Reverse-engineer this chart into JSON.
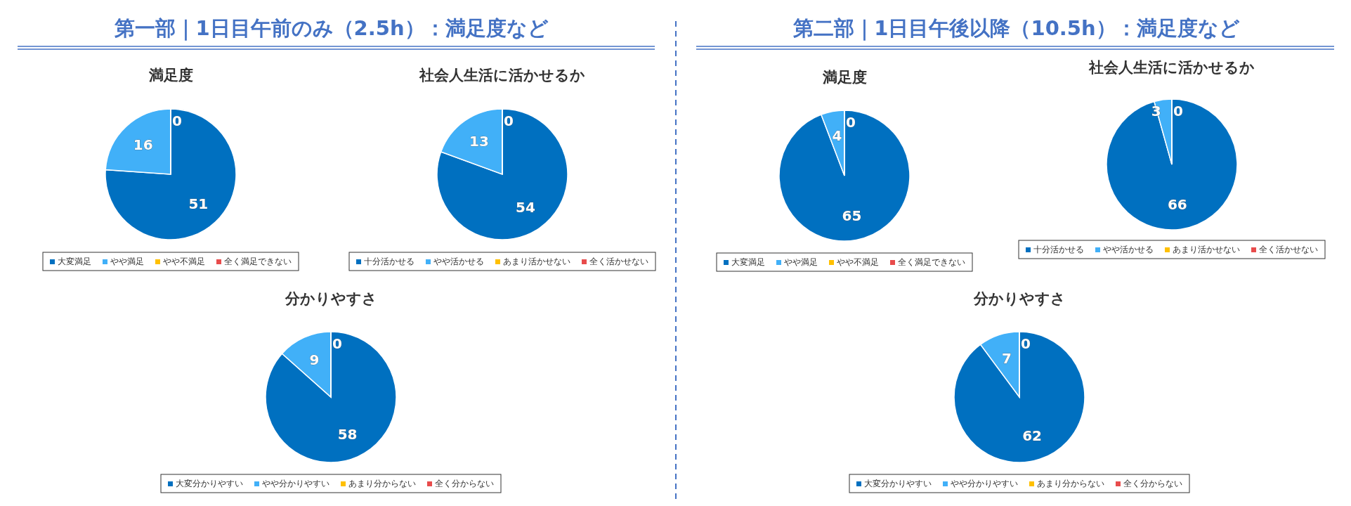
{
  "chart_data": [
    {
      "type": "pie",
      "title": "満足度",
      "annotations": [
        "第一部｜1日目午前のみ（2.5h）：満足度など"
      ],
      "categories": [
        "大変満足",
        "やや満足",
        "やや不満足",
        "全く満足できない"
      ],
      "values": [
        51,
        16,
        0,
        0
      ],
      "value_labels": [
        "51",
        "16",
        "0",
        null
      ],
      "colors": [
        "#0070c0",
        "#41b0f8",
        "#ffc000",
        "#e84c4c"
      ],
      "legend": "bottom"
    },
    {
      "type": "pie",
      "title": "社会人生活に活かせるか",
      "categories": [
        "十分活かせる",
        "やや活かせる",
        "あまり活かせない",
        "全く活かせない"
      ],
      "values": [
        54,
        13,
        0,
        0
      ],
      "value_labels": [
        "54",
        "13",
        "0",
        null
      ],
      "colors": [
        "#0070c0",
        "#41b0f8",
        "#ffc000",
        "#e84c4c"
      ],
      "legend": "bottom"
    },
    {
      "type": "pie",
      "title": "分かりやすさ",
      "categories": [
        "大変分かりやすい",
        "やや分かりやすい",
        "あまり分からない",
        "全く分からない"
      ],
      "values": [
        58,
        9,
        0,
        0
      ],
      "value_labels": [
        "58",
        "9",
        "0",
        null
      ],
      "colors": [
        "#0070c0",
        "#41b0f8",
        "#ffc000",
        "#e84c4c"
      ],
      "legend": "bottom"
    },
    {
      "type": "pie",
      "title": "満足度",
      "annotations": [
        "第二部｜1日目午後以降（10.5h）：満足度など"
      ],
      "categories": [
        "大変満足",
        "やや満足",
        "やや不満足",
        "全く満足できない"
      ],
      "values": [
        65,
        4,
        0,
        0
      ],
      "value_labels": [
        "65",
        "4",
        "0",
        null
      ],
      "colors": [
        "#0070c0",
        "#41b0f8",
        "#ffc000",
        "#e84c4c"
      ],
      "legend": "bottom"
    },
    {
      "type": "pie",
      "title": "社会人生活に活かせるか",
      "categories": [
        "十分活かせる",
        "やや活かせる",
        "あまり活かせない",
        "全く活かせない"
      ],
      "values": [
        66,
        3,
        0,
        0
      ],
      "value_labels": [
        "66",
        "3",
        "0",
        null
      ],
      "colors": [
        "#0070c0",
        "#41b0f8",
        "#ffc000",
        "#e84c4c"
      ],
      "legend": "bottom"
    },
    {
      "type": "pie",
      "title": "分かりやすさ",
      "categories": [
        "大変分かりやすい",
        "やや分かりやすい",
        "あまり分からない",
        "全く分からない"
      ],
      "values": [
        62,
        7,
        0,
        0
      ],
      "value_labels": [
        "62",
        "7",
        "0",
        null
      ],
      "colors": [
        "#0070c0",
        "#41b0f8",
        "#ffc000",
        "#e84c4c"
      ],
      "legend": "bottom"
    }
  ]
}
